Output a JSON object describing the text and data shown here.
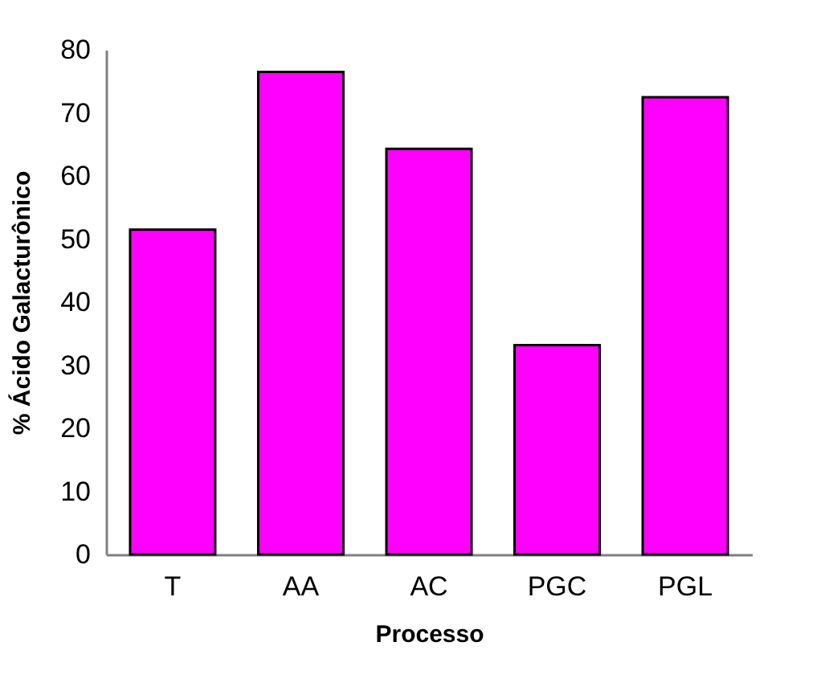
{
  "chart_data": {
    "type": "bar",
    "xlabel": "Processo",
    "ylabel": "% Ácido Galacturônico",
    "categories": [
      "T",
      "AA",
      "AC",
      "PGC",
      "PGL"
    ],
    "values": [
      51.5,
      76.5,
      64.3,
      33.2,
      72.5
    ],
    "color": "#ff00ff",
    "ylim": [
      0,
      80
    ],
    "yticks": [
      0,
      10,
      20,
      30,
      40,
      50,
      60,
      70,
      80
    ],
    "grid": false
  }
}
